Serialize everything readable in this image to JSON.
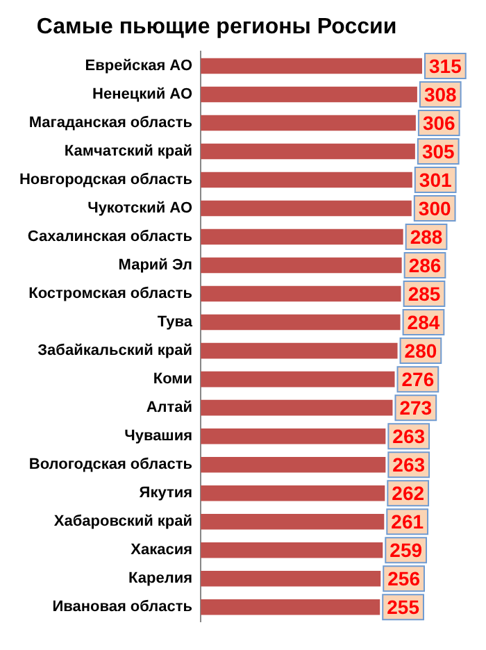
{
  "chart_data": {
    "type": "bar",
    "orientation": "horizontal",
    "title": "Самые пьющие регионы России",
    "categories": [
      "Еврейская АО",
      "Ненецкий АО",
      "Магаданская область",
      "Камчатский край",
      "Новгородская область",
      "Чукотский АО",
      "Сахалинская область",
      "Марий Эл",
      "Костромская область",
      "Тува",
      "Забайкальский край",
      "Коми",
      "Алтай",
      "Чувашия",
      "Вологодская область",
      "Якутия",
      "Хабаровский край",
      "Хакасия",
      "Карелия",
      "Ивановая область"
    ],
    "values": [
      315,
      308,
      306,
      305,
      301,
      300,
      288,
      286,
      285,
      284,
      280,
      276,
      273,
      263,
      263,
      262,
      261,
      259,
      256,
      255
    ],
    "color": "#c0504d",
    "data_labels": true,
    "grid": false,
    "legend": false,
    "tick_labels": "y"
  }
}
